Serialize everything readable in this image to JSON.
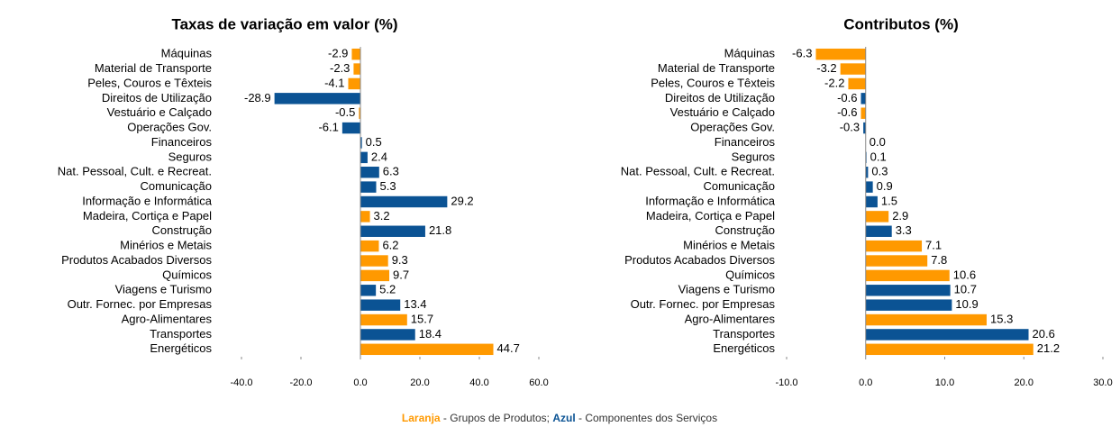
{
  "chart_data": [
    {
      "type": "bar",
      "orientation": "horizontal",
      "title": "Taxas de variação em valor (%)",
      "categories": [
        "Máquinas",
        "Material de Transporte",
        "Peles, Couros e Têxteis",
        "Direitos de Utilização",
        "Vestuário e Calçado",
        "Operações Gov.",
        "Financeiros",
        "Seguros",
        "Nat. Pessoal, Cult. e Recreat.",
        "Comunicação",
        "Informação e Informática",
        "Madeira, Cortiça e Papel",
        "Construção",
        "Minérios e Metais",
        "Produtos Acabados Diversos",
        "Químicos",
        "Viagens e Turismo",
        "Outr. Fornec. por Empresas",
        "Agro-Alimentares",
        "Transportes",
        "Energéticos"
      ],
      "values": [
        -2.9,
        -2.3,
        -4.1,
        -28.9,
        -0.5,
        -6.1,
        0.5,
        2.4,
        6.3,
        5.3,
        29.2,
        3.2,
        21.8,
        6.2,
        9.3,
        9.7,
        5.2,
        13.4,
        15.7,
        18.4,
        44.7
      ],
      "colors": [
        "#ff9900",
        "#ff9900",
        "#ff9900",
        "#0b5394",
        "#ff9900",
        "#0b5394",
        "#0b5394",
        "#0b5394",
        "#0b5394",
        "#0b5394",
        "#0b5394",
        "#ff9900",
        "#0b5394",
        "#ff9900",
        "#ff9900",
        "#ff9900",
        "#0b5394",
        "#0b5394",
        "#ff9900",
        "#0b5394",
        "#ff9900"
      ],
      "xlim": [
        -40,
        60
      ],
      "xticks": [
        {
          "value": -40,
          "label": "-40.0"
        },
        {
          "value": -20,
          "label": "-20.0"
        },
        {
          "value": 0,
          "label": "0.0"
        },
        {
          "value": 20,
          "label": "20.0"
        },
        {
          "value": 40,
          "label": "40.0"
        },
        {
          "value": 60,
          "label": "60.0"
        }
      ]
    },
    {
      "type": "bar",
      "orientation": "horizontal",
      "title": "Contributos (%)",
      "categories": [
        "Máquinas",
        "Material de Transporte",
        "Peles, Couros e Têxteis",
        "Direitos de Utilização",
        "Vestuário e Calçado",
        "Operações Gov.",
        "Financeiros",
        "Seguros",
        "Nat. Pessoal, Cult. e Recreat.",
        "Comunicação",
        "Informação e Informática",
        "Madeira, Cortiça e Papel",
        "Construção",
        "Minérios e Metais",
        "Produtos Acabados Diversos",
        "Químicos",
        "Viagens e Turismo",
        "Outr. Fornec. por Empresas",
        "Agro-Alimentares",
        "Transportes",
        "Energéticos"
      ],
      "values": [
        -6.3,
        -3.2,
        -2.2,
        -0.6,
        -0.6,
        -0.3,
        0.0,
        0.1,
        0.3,
        0.9,
        1.5,
        2.9,
        3.3,
        7.1,
        7.8,
        10.6,
        10.7,
        10.9,
        15.3,
        20.6,
        21.2
      ],
      "value_labels": [
        "-6.3",
        "-3.2",
        "-2.2",
        "-0.6",
        "-0.6",
        "-0.3",
        "0.0",
        "0.1",
        "0.3",
        "0.9",
        "1.5",
        "2.9",
        "3.3",
        "7.1",
        "7.8",
        "10.6",
        "10.7",
        "10.9",
        "15.3",
        "20.6",
        "21.2"
      ],
      "colors": [
        "#ff9900",
        "#ff9900",
        "#ff9900",
        "#0b5394",
        "#ff9900",
        "#0b5394",
        "#0b5394",
        "#0b5394",
        "#0b5394",
        "#0b5394",
        "#0b5394",
        "#ff9900",
        "#0b5394",
        "#ff9900",
        "#ff9900",
        "#ff9900",
        "#0b5394",
        "#0b5394",
        "#ff9900",
        "#0b5394",
        "#ff9900"
      ],
      "xlim": [
        -10,
        30
      ],
      "xticks": [
        {
          "value": -10,
          "label": "-10.0"
        },
        {
          "value": 0,
          "label": "0.0"
        },
        {
          "value": 10,
          "label": "10.0"
        },
        {
          "value": 20,
          "label": "20.0"
        },
        {
          "value": 30,
          "label": "30.0"
        }
      ]
    }
  ],
  "footnote": {
    "orange_word": "Laranja",
    "orange_text": " - Grupos de Produtos; ",
    "blue_word": "Azul",
    "blue_text": " - Componentes dos Serviços"
  }
}
